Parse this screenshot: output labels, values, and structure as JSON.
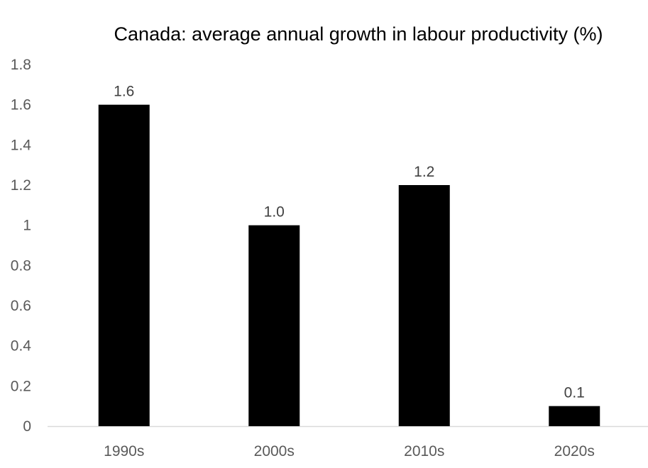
{
  "chart_data": {
    "type": "bar",
    "title": "Canada: average annual growth in labour productivity (%)",
    "xlabel": "",
    "ylabel": "",
    "categories": [
      "1990s",
      "2000s",
      "2010s",
      "2020s"
    ],
    "values": [
      1.6,
      1.0,
      1.2,
      0.1
    ],
    "data_labels": [
      "1.6",
      "1.0",
      "1.2",
      "0.1"
    ],
    "ylim": [
      0,
      1.8
    ],
    "yticks": [
      0,
      0.2,
      0.4,
      0.6,
      0.8,
      1,
      1.2,
      1.4,
      1.6,
      1.8
    ],
    "ytick_labels": [
      "0",
      "0.2",
      "0.4",
      "0.6",
      "0.8",
      "1",
      "1.2",
      "1.4",
      "1.6",
      "1.8"
    ],
    "grid": false,
    "legend": "none",
    "bar_color": "#000000",
    "axis_color": "#d9d9d9"
  }
}
